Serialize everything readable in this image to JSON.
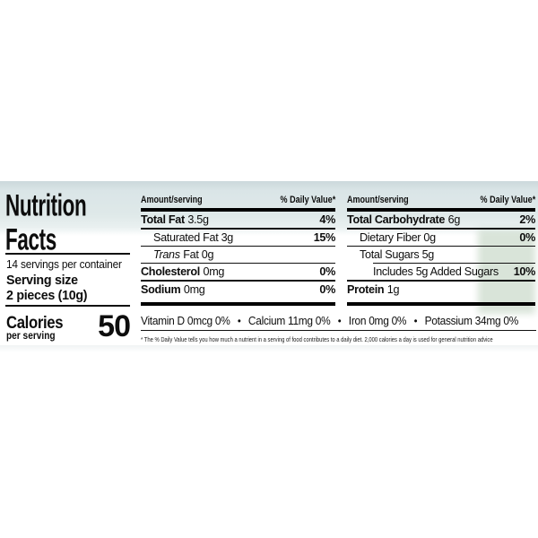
{
  "title": {
    "line1": "Nutrition",
    "line2": "Facts"
  },
  "serving_info": {
    "servings_per_container": "14 servings per container",
    "serving_size_label": "Serving size",
    "serving_size_value": "2 pieces (10g)"
  },
  "calories": {
    "label": "Calories",
    "sublabel": "per serving",
    "value": "50"
  },
  "table": {
    "amount_header": "Amount/serving",
    "dv_header": "% Daily Value*",
    "mid_rows": [
      {
        "bold": "Total Fat",
        "regular": "3.5g",
        "dv": "4%"
      },
      {
        "regular": "Saturated Fat 3g",
        "dv": "15%"
      },
      {
        "italic": "Trans",
        "regular": "Fat 0g",
        "dv": ""
      },
      {
        "bold": "Cholesterol",
        "regular": "0mg",
        "dv": "0%"
      },
      {
        "bold": "Sodium",
        "regular": "0mg",
        "dv": "0%"
      }
    ],
    "right_rows": [
      {
        "bold": "Total Carbohydrate",
        "regular": "6g",
        "dv": "2%"
      },
      {
        "regular": "Dietary Fiber 0g",
        "dv": "0%"
      },
      {
        "regular": "Total Sugars 5g",
        "dv": ""
      },
      {
        "regular": "Includes 5g Added Sugars",
        "dv": "10%"
      },
      {
        "bold": "Protein",
        "regular": "1g",
        "dv": ""
      }
    ]
  },
  "vitamins": {
    "bullet": "•",
    "items": [
      "Vitamin D 0mcg 0%",
      "Calcium 11mg 0%",
      "Iron 0mg 0%",
      "Potassium 34mg 0%"
    ]
  },
  "footnote": "* The % Daily Value tells you how much a nutrient in a serving of food contributes to a daily diet. 2,000 calories a day is used for general nutrition advice",
  "colors": {
    "tint_band": "#dfe9e9",
    "green_tint": "#bacdba",
    "text": "#0d0d0d",
    "rule": "#111111"
  }
}
